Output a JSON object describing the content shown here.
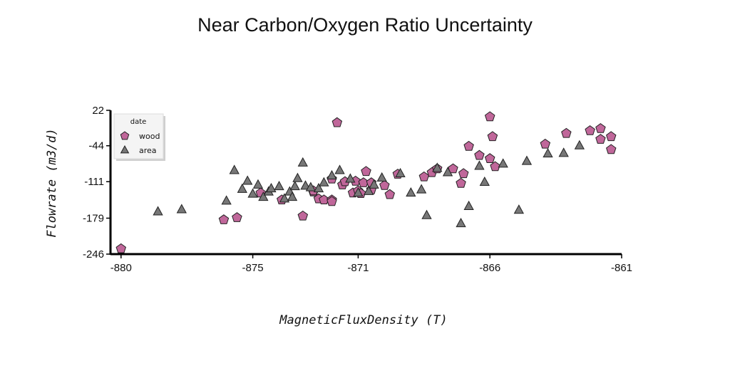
{
  "chart_data": {
    "type": "scatter",
    "title": "Near Carbon/Oxygen Ratio Uncertainty",
    "xlabel": "MagneticFluxDensity (T)",
    "ylabel": "Flowrate (m3/d)",
    "xlim": [
      -880.4,
      -861
    ],
    "ylim": [
      -246,
      22
    ],
    "x_ticks": [
      -880,
      -875,
      -871,
      -866,
      -861
    ],
    "x_tick_labels": [
      "-880",
      "-875",
      "-871",
      "-866",
      "-861"
    ],
    "y_ticks": [
      22,
      -44,
      -111,
      -179,
      -246
    ],
    "y_tick_labels": [
      "22",
      "-44",
      "-111",
      "-179",
      "-246"
    ],
    "grid": false,
    "legend": {
      "title": "date",
      "placement": "top-left"
    },
    "series": [
      {
        "name": "wood",
        "marker": "pentagon",
        "color": "#c0679a",
        "points": [
          [
            -880,
            -236
          ],
          [
            -876.1,
            -182
          ],
          [
            -875.6,
            -178
          ],
          [
            -874.7,
            -132
          ],
          [
            -873.9,
            -145
          ],
          [
            -873.1,
            -175
          ],
          [
            -872.7,
            -130
          ],
          [
            -872.7,
            -128
          ],
          [
            -872.5,
            -143
          ],
          [
            -872.3,
            -145
          ],
          [
            -872.0,
            -106
          ],
          [
            -872.0,
            -145
          ],
          [
            -872.0,
            -148
          ],
          [
            -871.8,
            -1
          ],
          [
            -871.6,
            -117
          ],
          [
            -871.5,
            -111
          ],
          [
            -871.1,
            -110
          ],
          [
            -871.2,
            -132
          ],
          [
            -871.0,
            -128
          ],
          [
            -870.8,
            -113
          ],
          [
            -870.7,
            -92
          ],
          [
            -870.9,
            -133
          ],
          [
            -870.5,
            -126
          ],
          [
            -870.5,
            -113
          ],
          [
            -870.0,
            -118
          ],
          [
            -869.5,
            -97
          ],
          [
            -869.8,
            -135
          ],
          [
            -868.5,
            -102
          ],
          [
            -868.2,
            -94
          ],
          [
            -868.0,
            -87
          ],
          [
            -867.4,
            -87
          ],
          [
            -867.1,
            -114
          ],
          [
            -867.0,
            -96
          ],
          [
            -866.8,
            -45
          ],
          [
            -866.4,
            -62
          ],
          [
            -866.0,
            -68
          ],
          [
            -865.8,
            -83
          ],
          [
            -865.9,
            -27
          ],
          [
            -863.9,
            -41
          ],
          [
            -863.1,
            -21
          ],
          [
            -862.2,
            -16
          ],
          [
            -861.8,
            -12
          ],
          [
            -861.8,
            -32
          ],
          [
            -861.4,
            -27
          ],
          [
            -861.4,
            -51
          ],
          [
            -866.0,
            10
          ]
        ]
      },
      {
        "name": "area",
        "marker": "triangle",
        "color": "#777777",
        "points": [
          [
            -878.6,
            -167
          ],
          [
            -877.7,
            -163
          ],
          [
            -876.0,
            -147
          ],
          [
            -875.7,
            -90
          ],
          [
            -875.4,
            -125
          ],
          [
            -875.2,
            -110
          ],
          [
            -875.0,
            -134
          ],
          [
            -874.8,
            -117
          ],
          [
            -874.6,
            -140
          ],
          [
            -874.4,
            -130
          ],
          [
            -874.3,
            -124
          ],
          [
            -874.0,
            -120
          ],
          [
            -873.8,
            -143
          ],
          [
            -873.6,
            -130
          ],
          [
            -873.5,
            -140
          ],
          [
            -873.4,
            -120
          ],
          [
            -873.3,
            -105
          ],
          [
            -873.1,
            -76
          ],
          [
            -873.0,
            -119
          ],
          [
            -872.8,
            -122
          ],
          [
            -872.5,
            -124
          ],
          [
            -872.3,
            -113
          ],
          [
            -872.0,
            -100
          ],
          [
            -871.7,
            -90
          ],
          [
            -871.3,
            -106
          ],
          [
            -871.0,
            -132
          ],
          [
            -870.6,
            -129
          ],
          [
            -870.4,
            -117
          ],
          [
            -870.1,
            -104
          ],
          [
            -869.4,
            -96
          ],
          [
            -869.0,
            -132
          ],
          [
            -868.6,
            -126
          ],
          [
            -868.4,
            -174
          ],
          [
            -868.0,
            -86
          ],
          [
            -867.6,
            -94
          ],
          [
            -867.1,
            -189
          ],
          [
            -866.8,
            -157
          ],
          [
            -866.4,
            -82
          ],
          [
            -866.2,
            -112
          ],
          [
            -865.5,
            -78
          ],
          [
            -864.9,
            -164
          ],
          [
            -864.6,
            -73
          ],
          [
            -863.8,
            -59
          ],
          [
            -863.2,
            -58
          ],
          [
            -862.6,
            -44
          ]
        ]
      }
    ]
  }
}
